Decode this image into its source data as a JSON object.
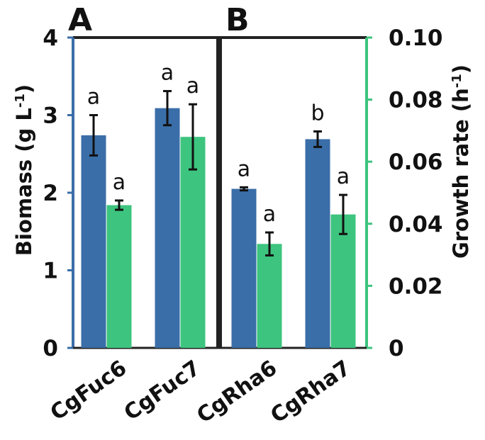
{
  "chart_data": {
    "type": "bar",
    "panels": [
      "A",
      "B"
    ],
    "categories": [
      "CgFuc6",
      "CgFuc7",
      "CgRha6",
      "CgRha7"
    ],
    "ylabel": "Biomass (g L",
    "ylabel_sup": "-1",
    "ylabel_close": ")",
    "y2label": "Growth rate (h",
    "y2label_sup": "-1",
    "y2label_close": ")",
    "ylim": [
      0,
      4
    ],
    "y2lim": [
      0,
      0.1
    ],
    "yticks": [
      "0",
      "1",
      "2",
      "3",
      "4"
    ],
    "y2ticks": [
      "0",
      "0.02",
      "0.04",
      "0.06",
      "0.08",
      "0.10"
    ],
    "series": [
      {
        "axis": "left",
        "color": "#3a6ea8",
        "values": [
          2.74,
          3.09,
          2.05,
          2.69
        ],
        "errors": [
          0.26,
          0.22,
          0.02,
          0.1
        ],
        "sig": [
          "a",
          "a",
          "a",
          "b"
        ]
      },
      {
        "axis": "right",
        "color": "#3dc47e",
        "values": [
          0.046,
          0.068,
          0.0335,
          0.043
        ],
        "errors": [
          0.0015,
          0.0105,
          0.0037,
          0.0063
        ],
        "sig": [
          "a",
          "a",
          "a",
          "a"
        ]
      }
    ],
    "left_axis_color": "#3a6ea8",
    "right_axis_color": "#3dc47e",
    "divider_color": "#222222",
    "grid": false
  }
}
